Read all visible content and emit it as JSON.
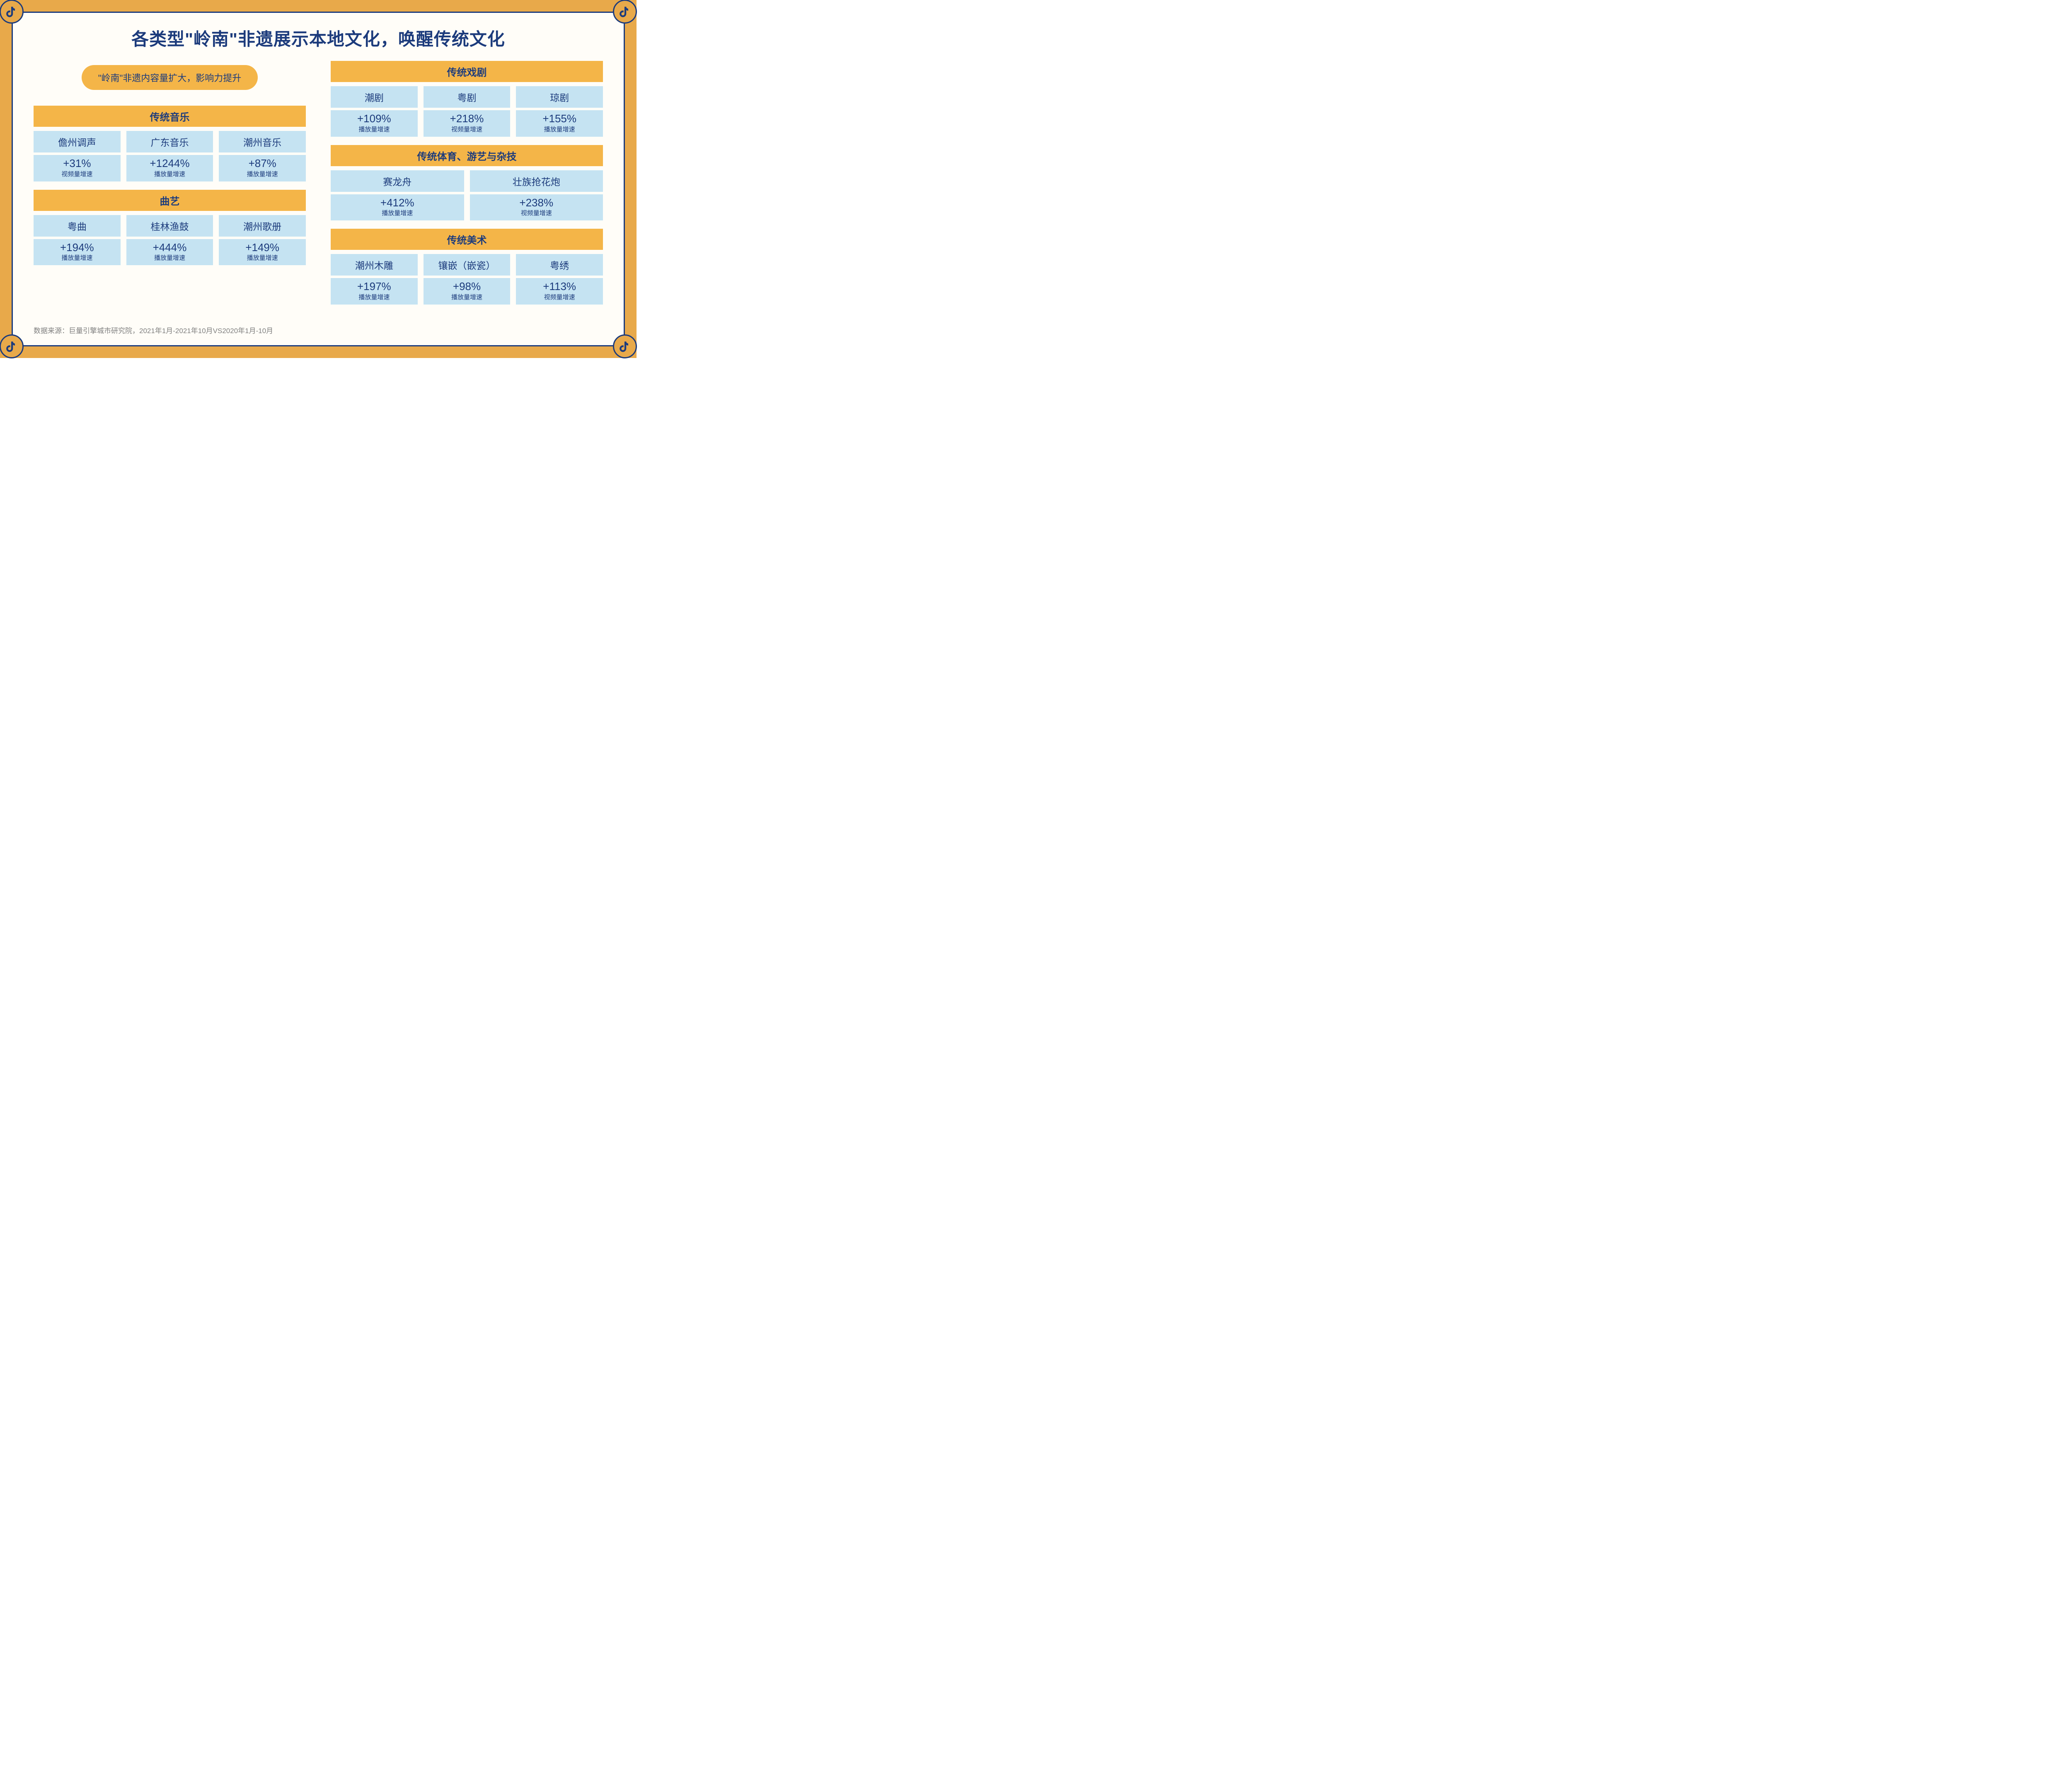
{
  "colors": {
    "frame": "#e8a94a",
    "panel": "#fffdf8",
    "navy": "#1c3b7c",
    "header": "#f4b548",
    "cell": "#c5e3f2",
    "footnote": "#808080"
  },
  "title": "各类型\"岭南\"非遗展示本地文化，唤醒传统文化",
  "tagline": "\"岭南\"非遗内容量扩大，影响力提升",
  "footnote": "数据来源：巨量引擎城市研究院，2021年1月-2021年10月VS2020年1月-10月",
  "left": [
    {
      "name": "传统音乐",
      "layout": "three",
      "items": [
        {
          "name": "儋州调声",
          "value": "+31%",
          "label": "视频量增速"
        },
        {
          "name": "广东音乐",
          "value": "+1244%",
          "label": "播放量增速"
        },
        {
          "name": "潮州音乐",
          "value": "+87%",
          "label": "播放量增速"
        }
      ]
    },
    {
      "name": "曲艺",
      "layout": "three",
      "items": [
        {
          "name": "粤曲",
          "value": "+194%",
          "label": "播放量增速"
        },
        {
          "name": "桂林渔鼓",
          "value": "+444%",
          "label": "播放量增速"
        },
        {
          "name": "潮州歌册",
          "value": "+149%",
          "label": "播放量增速"
        }
      ]
    }
  ],
  "right": [
    {
      "name": "传统戏剧",
      "layout": "three",
      "items": [
        {
          "name": "潮剧",
          "value": "+109%",
          "label": "播放量增速"
        },
        {
          "name": "粤剧",
          "value": "+218%",
          "label": "视频量增速"
        },
        {
          "name": "琼剧",
          "value": "+155%",
          "label": "播放量增速"
        }
      ]
    },
    {
      "name": "传统体育、游艺与杂技",
      "layout": "two",
      "items": [
        {
          "name": "赛龙舟",
          "value": "+412%",
          "label": "播放量增速"
        },
        {
          "name": "壮族抢花炮",
          "value": "+238%",
          "label": "视频量增速"
        }
      ]
    },
    {
      "name": "传统美术",
      "layout": "three",
      "items": [
        {
          "name": "潮州木雕",
          "value": "+197%",
          "label": "播放量增速"
        },
        {
          "name": "镶嵌（嵌瓷）",
          "value": "+98%",
          "label": "播放量增速"
        },
        {
          "name": "粤绣",
          "value": "+113%",
          "label": "视频量增速"
        }
      ]
    }
  ]
}
